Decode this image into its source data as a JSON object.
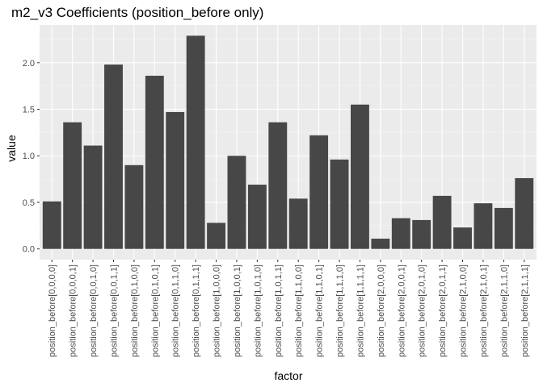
{
  "chart_data": {
    "type": "bar",
    "title": "m2_v3 Coefficients (position_before only)",
    "xlabel": "factor",
    "ylabel": "value",
    "categories": [
      "position_before[0,0,0,0]",
      "position_before[0,0,0,1]",
      "position_before[0,0,1,0]",
      "position_before[0,0,1,1]",
      "position_before[0,1,0,0]",
      "position_before[0,1,0,1]",
      "position_before[0,1,1,0]",
      "position_before[0,1,1,1]",
      "position_before[1,0,0,0]",
      "position_before[1,0,0,1]",
      "position_before[1,0,1,0]",
      "position_before[1,0,1,1]",
      "position_before[1,1,0,0]",
      "position_before[1,1,0,1]",
      "position_before[1,1,1,0]",
      "position_before[1,1,1,1]",
      "position_before[2,0,0,0]",
      "position_before[2,0,0,1]",
      "position_before[2,0,1,0]",
      "position_before[2,0,1,1]",
      "position_before[2,1,0,0]",
      "position_before[2,1,0,1]",
      "position_before[2,1,1,0]",
      "position_before[2,1,1,1]"
    ],
    "values": [
      0.51,
      1.36,
      1.11,
      1.98,
      0.9,
      1.86,
      1.47,
      2.29,
      0.28,
      1.0,
      0.69,
      1.36,
      0.54,
      1.22,
      0.96,
      1.55,
      0.11,
      0.33,
      0.31,
      0.57,
      0.23,
      0.49,
      0.44,
      0.76
    ],
    "yticks": [
      "0.0",
      "0.5",
      "1.0",
      "1.5",
      "2.0"
    ],
    "ylim": [
      -0.115,
      2.405
    ],
    "grid": true,
    "legend": "none",
    "colors": {
      "bar": "#474747",
      "panel": "#ebebeb",
      "grid_major": "#ffffff",
      "grid_minor": "#f5f5f5",
      "tick": "#333333",
      "tick_label": "#4d4d4d"
    }
  }
}
